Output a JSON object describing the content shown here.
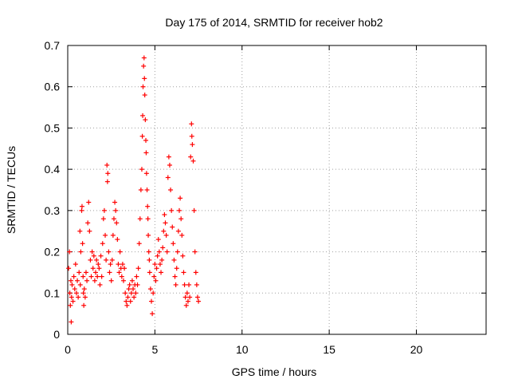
{
  "chart_data": {
    "type": "scatter",
    "title": "Day 175 of 2014, SRMTID for receiver hob2",
    "xlabel": "GPS time / hours",
    "ylabel": "SRMTID / TECUs",
    "xlim": [
      0,
      24
    ],
    "ylim": [
      0,
      0.7
    ],
    "xticks": [
      0,
      5,
      10,
      15,
      20
    ],
    "yticks": [
      0,
      0.1,
      0.2,
      0.3,
      0.4,
      0.5,
      0.6,
      0.7
    ],
    "xtick_labels": [
      "0",
      "5",
      "10",
      "15",
      "20"
    ],
    "ytick_labels": [
      "0",
      "0.1",
      "0.2",
      "0.3",
      "0.4",
      "0.5",
      "0.6",
      "0.7"
    ],
    "grid": true,
    "marker": "+",
    "marker_color": "#ff0000",
    "series": [
      {
        "name": "SRMTID",
        "points": [
          [
            0.05,
            0.16
          ],
          [
            0.1,
            0.2
          ],
          [
            0.12,
            0.1
          ],
          [
            0.15,
            0.07
          ],
          [
            0.18,
            0.13
          ],
          [
            0.2,
            0.03
          ],
          [
            0.22,
            0.09
          ],
          [
            0.25,
            0.12
          ],
          [
            0.3,
            0.08
          ],
          [
            0.35,
            0.14
          ],
          [
            0.4,
            0.11
          ],
          [
            0.45,
            0.17
          ],
          [
            0.5,
            0.1
          ],
          [
            0.55,
            0.13
          ],
          [
            0.6,
            0.09
          ],
          [
            0.65,
            0.15
          ],
          [
            0.7,
            0.25
          ],
          [
            0.72,
            0.12
          ],
          [
            0.75,
            0.2
          ],
          [
            0.8,
            0.3
          ],
          [
            0.82,
            0.31
          ],
          [
            0.85,
            0.22
          ],
          [
            0.88,
            0.14
          ],
          [
            0.9,
            0.1
          ],
          [
            0.92,
            0.07
          ],
          [
            0.95,
            0.11
          ],
          [
            1.0,
            0.09
          ],
          [
            1.05,
            0.15
          ],
          [
            1.1,
            0.13
          ],
          [
            1.15,
            0.27
          ],
          [
            1.2,
            0.32
          ],
          [
            1.25,
            0.25
          ],
          [
            1.3,
            0.18
          ],
          [
            1.35,
            0.14
          ],
          [
            1.4,
            0.2
          ],
          [
            1.45,
            0.16
          ],
          [
            1.5,
            0.19
          ],
          [
            1.55,
            0.13
          ],
          [
            1.6,
            0.15
          ],
          [
            1.65,
            0.18
          ],
          [
            1.7,
            0.14
          ],
          [
            1.75,
            0.17
          ],
          [
            1.8,
            0.16
          ],
          [
            1.85,
            0.12
          ],
          [
            1.9,
            0.19
          ],
          [
            1.95,
            0.14
          ],
          [
            2.0,
            0.22
          ],
          [
            2.05,
            0.28
          ],
          [
            2.1,
            0.3
          ],
          [
            2.15,
            0.24
          ],
          [
            2.2,
            0.18
          ],
          [
            2.25,
            0.41
          ],
          [
            2.28,
            0.37
          ],
          [
            2.3,
            0.39
          ],
          [
            2.35,
            0.2
          ],
          [
            2.4,
            0.15
          ],
          [
            2.45,
            0.17
          ],
          [
            2.5,
            0.13
          ],
          [
            2.55,
            0.18
          ],
          [
            2.6,
            0.24
          ],
          [
            2.65,
            0.28
          ],
          [
            2.7,
            0.32
          ],
          [
            2.75,
            0.3
          ],
          [
            2.8,
            0.27
          ],
          [
            2.85,
            0.23
          ],
          [
            2.9,
            0.17
          ],
          [
            2.95,
            0.15
          ],
          [
            3.0,
            0.2
          ],
          [
            3.05,
            0.16
          ],
          [
            3.1,
            0.14
          ],
          [
            3.15,
            0.17
          ],
          [
            3.2,
            0.13
          ],
          [
            3.25,
            0.16
          ],
          [
            3.3,
            0.1
          ],
          [
            3.35,
            0.08
          ],
          [
            3.4,
            0.07
          ],
          [
            3.45,
            0.09
          ],
          [
            3.5,
            0.11
          ],
          [
            3.55,
            0.12
          ],
          [
            3.6,
            0.08
          ],
          [
            3.65,
            0.1
          ],
          [
            3.7,
            0.13
          ],
          [
            3.75,
            0.11
          ],
          [
            3.8,
            0.09
          ],
          [
            3.85,
            0.12
          ],
          [
            3.9,
            0.1
          ],
          [
            3.95,
            0.14
          ],
          [
            4.0,
            0.12
          ],
          [
            4.05,
            0.16
          ],
          [
            4.1,
            0.22
          ],
          [
            4.15,
            0.28
          ],
          [
            4.2,
            0.35
          ],
          [
            4.25,
            0.4
          ],
          [
            4.28,
            0.48
          ],
          [
            4.3,
            0.53
          ],
          [
            4.32,
            0.6
          ],
          [
            4.35,
            0.65
          ],
          [
            4.38,
            0.67
          ],
          [
            4.4,
            0.62
          ],
          [
            4.42,
            0.58
          ],
          [
            4.45,
            0.52
          ],
          [
            4.48,
            0.47
          ],
          [
            4.5,
            0.44
          ],
          [
            4.52,
            0.39
          ],
          [
            4.55,
            0.35
          ],
          [
            4.58,
            0.31
          ],
          [
            4.6,
            0.28
          ],
          [
            4.62,
            0.24
          ],
          [
            4.65,
            0.2
          ],
          [
            4.68,
            0.18
          ],
          [
            4.7,
            0.15
          ],
          [
            4.75,
            0.11
          ],
          [
            4.8,
            0.08
          ],
          [
            4.85,
            0.05
          ],
          [
            4.9,
            0.1
          ],
          [
            4.95,
            0.14
          ],
          [
            5.0,
            0.17
          ],
          [
            5.05,
            0.13
          ],
          [
            5.1,
            0.16
          ],
          [
            5.15,
            0.19
          ],
          [
            5.2,
            0.23
          ],
          [
            5.25,
            0.2
          ],
          [
            5.3,
            0.17
          ],
          [
            5.35,
            0.15
          ],
          [
            5.4,
            0.18
          ],
          [
            5.45,
            0.21
          ],
          [
            5.5,
            0.25
          ],
          [
            5.55,
            0.29
          ],
          [
            5.6,
            0.27
          ],
          [
            5.65,
            0.24
          ],
          [
            5.7,
            0.2
          ],
          [
            5.75,
            0.38
          ],
          [
            5.8,
            0.43
          ],
          [
            5.85,
            0.41
          ],
          [
            5.9,
            0.35
          ],
          [
            5.95,
            0.3
          ],
          [
            6.0,
            0.26
          ],
          [
            6.05,
            0.22
          ],
          [
            6.1,
            0.18
          ],
          [
            6.15,
            0.14
          ],
          [
            6.2,
            0.12
          ],
          [
            6.25,
            0.16
          ],
          [
            6.3,
            0.2
          ],
          [
            6.35,
            0.25
          ],
          [
            6.4,
            0.3
          ],
          [
            6.45,
            0.33
          ],
          [
            6.5,
            0.28
          ],
          [
            6.55,
            0.24
          ],
          [
            6.6,
            0.19
          ],
          [
            6.65,
            0.15
          ],
          [
            6.7,
            0.12
          ],
          [
            6.75,
            0.09
          ],
          [
            6.8,
            0.07
          ],
          [
            6.85,
            0.1
          ],
          [
            6.9,
            0.08
          ],
          [
            6.95,
            0.12
          ],
          [
            7.0,
            0.09
          ],
          [
            7.05,
            0.43
          ],
          [
            7.1,
            0.51
          ],
          [
            7.12,
            0.48
          ],
          [
            7.15,
            0.46
          ],
          [
            7.2,
            0.42
          ],
          [
            7.25,
            0.3
          ],
          [
            7.3,
            0.2
          ],
          [
            7.35,
            0.15
          ],
          [
            7.4,
            0.12
          ],
          [
            7.45,
            0.09
          ],
          [
            7.5,
            0.08
          ]
        ]
      }
    ]
  }
}
